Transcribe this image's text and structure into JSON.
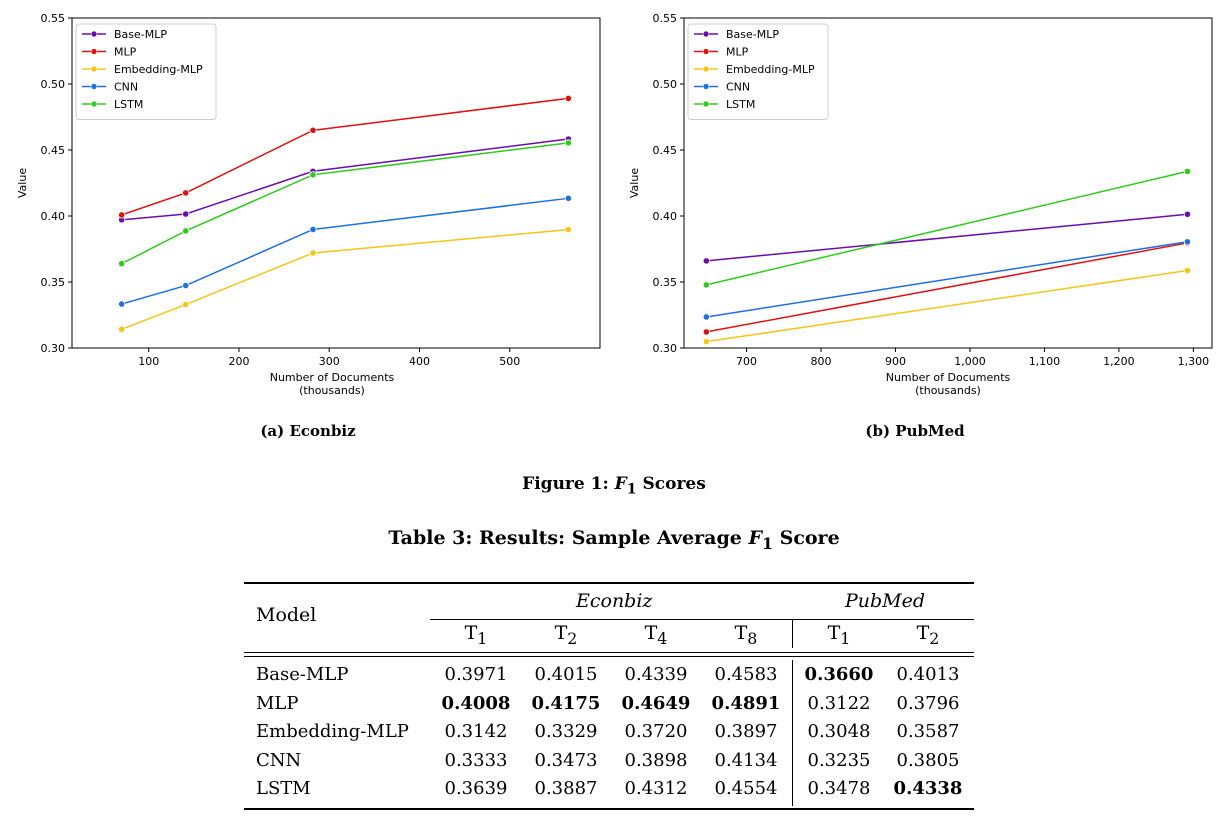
{
  "chart_data": [
    {
      "type": "line",
      "xlabel": [
        "Number of Documents",
        "(thousands)"
      ],
      "ylabel": "Value",
      "xlim": [
        15,
        600
      ],
      "ylim": [
        0.3,
        0.55
      ],
      "xticks": [
        100,
        200,
        300,
        400,
        500
      ],
      "xtick_labels": [
        "100",
        "200",
        "300",
        "400",
        "500"
      ],
      "yticks": [
        0.3,
        0.35,
        0.4,
        0.45,
        0.5,
        0.55
      ],
      "ytick_labels": [
        "0.30",
        "0.35",
        "0.40",
        "0.45",
        "0.50",
        "0.55"
      ],
      "legend_position": "top-left",
      "x": [
        70,
        141,
        282,
        565
      ],
      "series": [
        {
          "name": "Base-MLP",
          "color": "#6a0dad",
          "values": [
            0.3971,
            0.4015,
            0.4339,
            0.4583
          ]
        },
        {
          "name": "MLP",
          "color": "#e01010",
          "values": [
            0.4008,
            0.4175,
            0.4649,
            0.4891
          ]
        },
        {
          "name": "Embedding-MLP",
          "color": "#f5c518",
          "values": [
            0.3142,
            0.3329,
            0.372,
            0.3897
          ]
        },
        {
          "name": "CNN",
          "color": "#1f6fe0",
          "values": [
            0.3333,
            0.3473,
            0.3898,
            0.4134
          ]
        },
        {
          "name": "LSTM",
          "color": "#2ecc1a",
          "values": [
            0.3639,
            0.3887,
            0.4312,
            0.4554
          ]
        }
      ]
    },
    {
      "type": "line",
      "xlabel": [
        "Number of Documents",
        "(thousands)"
      ],
      "ylabel": "Value",
      "xlim": [
        616,
        1325
      ],
      "ylim": [
        0.3,
        0.55
      ],
      "xticks": [
        700,
        800,
        900,
        1000,
        1100,
        1200,
        1300
      ],
      "xtick_labels": [
        "700",
        "800",
        "900",
        "1,000",
        "1,100",
        "1,200",
        "1,300"
      ],
      "yticks": [
        0.3,
        0.35,
        0.4,
        0.45,
        0.5,
        0.55
      ],
      "ytick_labels": [
        "0.30",
        "0.35",
        "0.40",
        "0.45",
        "0.50",
        "0.55"
      ],
      "legend_position": "top-left",
      "x": [
        646,
        1292
      ],
      "series": [
        {
          "name": "Base-MLP",
          "color": "#6a0dad",
          "values": [
            0.366,
            0.4013
          ]
        },
        {
          "name": "MLP",
          "color": "#e01010",
          "values": [
            0.3122,
            0.3796
          ]
        },
        {
          "name": "Embedding-MLP",
          "color": "#f5c518",
          "values": [
            0.3048,
            0.3587
          ]
        },
        {
          "name": "CNN",
          "color": "#1f6fe0",
          "values": [
            0.3235,
            0.3805
          ]
        },
        {
          "name": "LSTM",
          "color": "#2ecc1a",
          "values": [
            0.3478,
            0.4338
          ]
        }
      ]
    }
  ],
  "captions": {
    "sub_a": "(a) Econbiz",
    "sub_b": "(b) PubMed",
    "figure_prefix": "Figure 1: ",
    "figure_var": "F",
    "figure_sub": "1",
    "figure_suffix": " Scores",
    "table_prefix": "Table 3: Results: Sample Average ",
    "table_var": "F",
    "table_sub": "1",
    "table_suffix": " Score"
  },
  "table": {
    "model_header": "Model",
    "group_econbiz": "Econbiz",
    "group_pubmed": "PubMed",
    "col_letter": "T",
    "col_subs": [
      "1",
      "2",
      "4",
      "8",
      "1",
      "2"
    ],
    "rows": [
      {
        "model": "Base-MLP",
        "values": [
          "0.3971",
          "0.4015",
          "0.4339",
          "0.4583",
          "0.3660",
          "0.4013"
        ],
        "bold": [
          false,
          false,
          false,
          false,
          true,
          false
        ]
      },
      {
        "model": "MLP",
        "values": [
          "0.4008",
          "0.4175",
          "0.4649",
          "0.4891",
          "0.3122",
          "0.3796"
        ],
        "bold": [
          true,
          true,
          true,
          true,
          false,
          false
        ]
      },
      {
        "model": "Embedding-MLP",
        "values": [
          "0.3142",
          "0.3329",
          "0.3720",
          "0.3897",
          "0.3048",
          "0.3587"
        ],
        "bold": [
          false,
          false,
          false,
          false,
          false,
          false
        ]
      },
      {
        "model": "CNN",
        "values": [
          "0.3333",
          "0.3473",
          "0.3898",
          "0.4134",
          "0.3235",
          "0.3805"
        ],
        "bold": [
          false,
          false,
          false,
          false,
          false,
          false
        ]
      },
      {
        "model": "LSTM",
        "values": [
          "0.3639",
          "0.3887",
          "0.4312",
          "0.4554",
          "0.3478",
          "0.4338"
        ],
        "bold": [
          false,
          false,
          false,
          false,
          false,
          true
        ]
      }
    ]
  }
}
